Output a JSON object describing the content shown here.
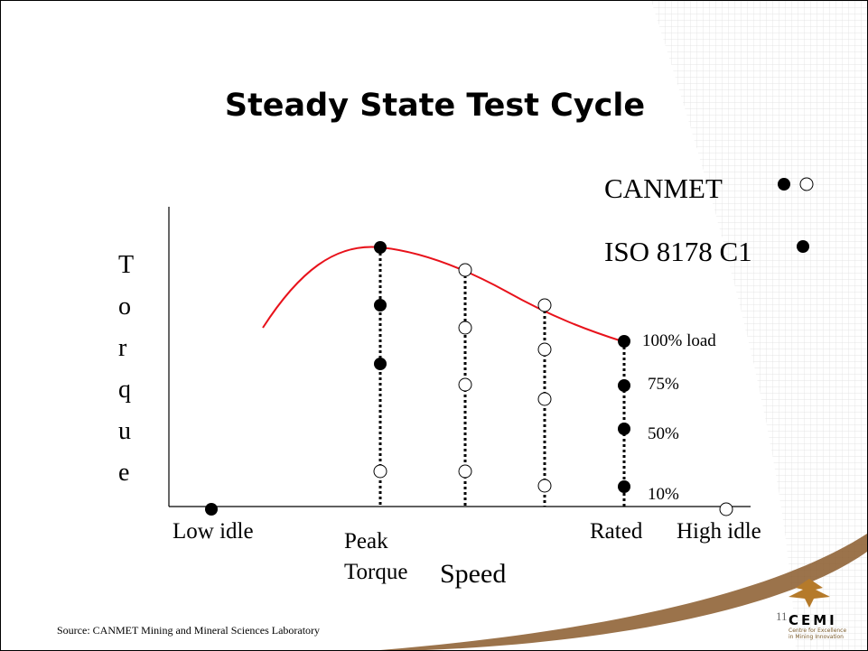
{
  "title": "Steady State Test Cycle",
  "legend": [
    "CANMET",
    "ISO 8178 C1"
  ],
  "y_label": "Torque",
  "x_label": "Speed",
  "speed_labels": [
    "Low idle",
    "Peak Torque",
    "Rated",
    "High idle"
  ],
  "load_labels": [
    "100% load",
    "75%",
    "50%",
    "10%"
  ],
  "source": "Source: CANMET Mining and Mineral Sciences Laboratory",
  "page_number": "11",
  "logo": {
    "name": "CEMI",
    "subtitle": "Centre for Excellence in Mining Innovation"
  }
}
